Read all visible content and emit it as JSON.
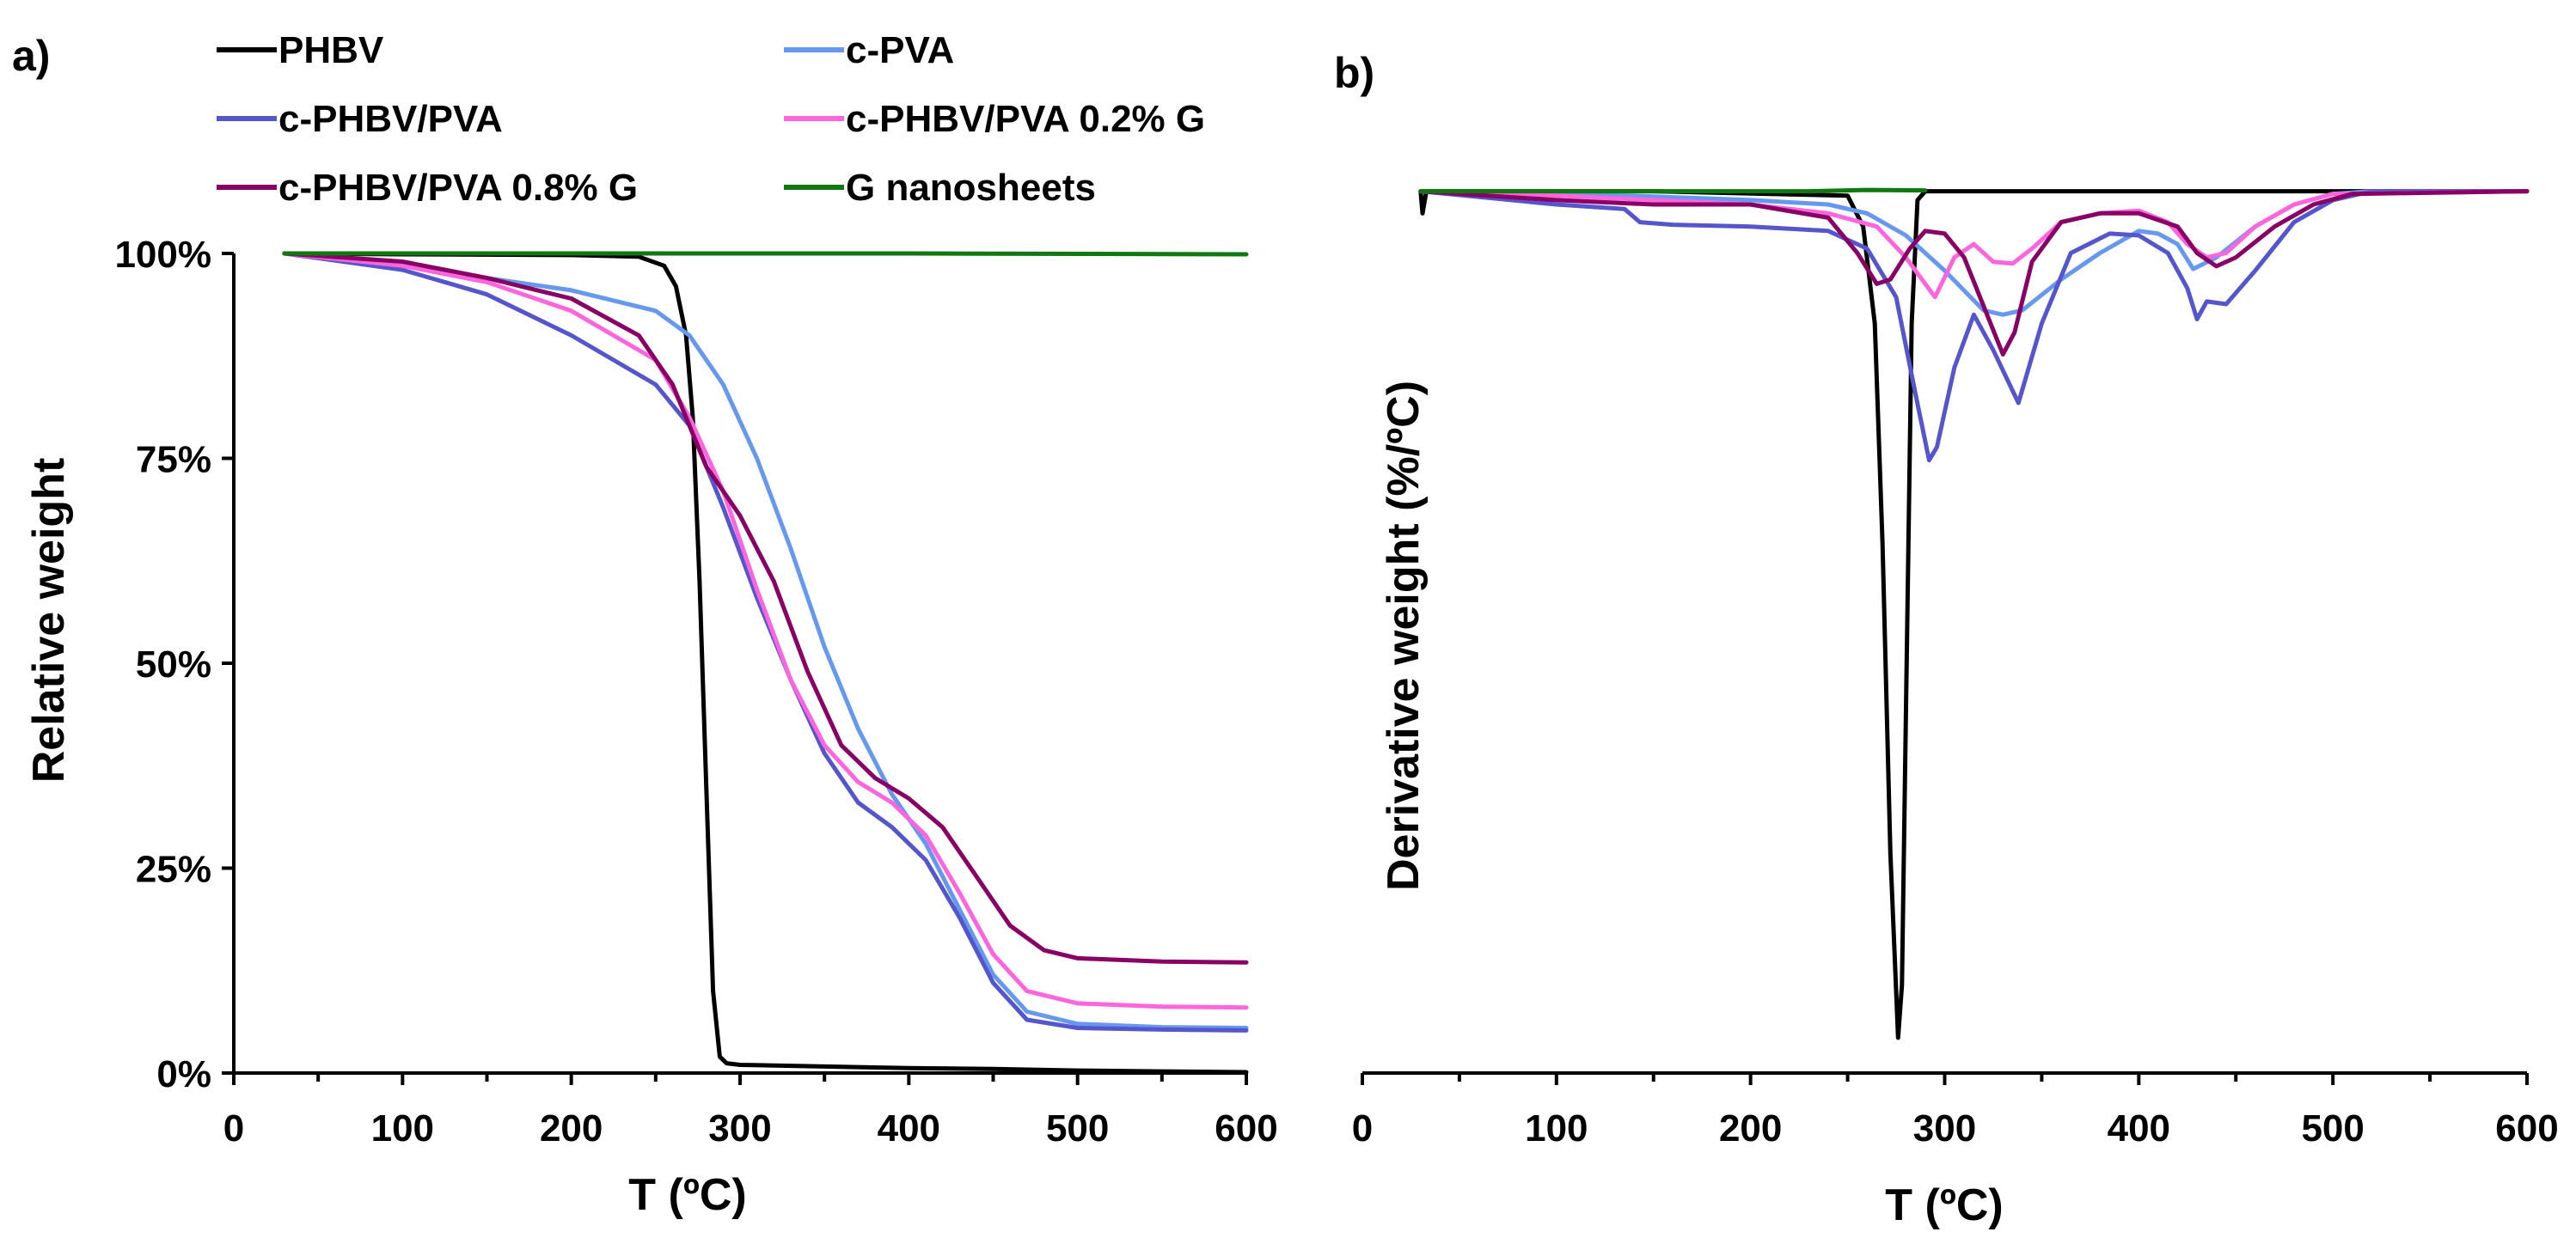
{
  "legend": [
    {
      "name": "PHBV",
      "color": "#000000"
    },
    {
      "name": "c-PVA",
      "color": "#6699ee"
    },
    {
      "name": "c-PHBV/PVA",
      "color": "#5555cc"
    },
    {
      "name": "c-PHBV/PVA 0.2% G",
      "color": "#ff66dd"
    },
    {
      "name": "c-PHBV/PVA 0.8% G",
      "color": "#880066"
    },
    {
      "name": "G nanosheets",
      "color": "#117711"
    }
  ],
  "chart_data": [
    {
      "panel_label": "a)",
      "type": "line",
      "title": "",
      "xlabel": "T (ºC)",
      "ylabel": "Relative weight",
      "xlim": [
        0,
        600
      ],
      "ylim": [
        0,
        100
      ],
      "xticks": [
        0,
        100,
        200,
        300,
        400,
        500,
        600
      ],
      "xtick_labels": [
        "0",
        "100",
        "200",
        "300",
        "400",
        "500",
        "600"
      ],
      "yticks": [
        0,
        25,
        50,
        75,
        100
      ],
      "ytick_labels": [
        "0%",
        "25%",
        "50%",
        "75%",
        "100%"
      ],
      "grid": false,
      "series": [
        {
          "name": "PHBV",
          "color": "#000000",
          "x": [
            30,
            100,
            200,
            240,
            255,
            262,
            268,
            272,
            276,
            280,
            284,
            288,
            292,
            300,
            350,
            400,
            450,
            500,
            550,
            600
          ],
          "y": [
            100,
            99.9,
            99.8,
            99.6,
            98.5,
            96,
            90,
            80,
            60,
            35,
            10,
            2,
            1.2,
            1.0,
            0.8,
            0.6,
            0.5,
            0.3,
            0.2,
            0.1
          ]
        },
        {
          "name": "c-PVA",
          "color": "#6699ee",
          "x": [
            30,
            100,
            150,
            200,
            250,
            270,
            290,
            310,
            330,
            350,
            370,
            390,
            410,
            430,
            450,
            470,
            500,
            550,
            600
          ],
          "y": [
            100,
            98.5,
            97,
            95.5,
            93,
            90,
            84,
            75,
            64,
            52,
            42,
            34,
            28,
            20,
            12,
            7.5,
            6,
            5.6,
            5.5
          ]
        },
        {
          "name": "c-PHBV/PVA",
          "color": "#5555cc",
          "x": [
            30,
            100,
            150,
            200,
            250,
            270,
            290,
            310,
            330,
            350,
            370,
            390,
            410,
            430,
            450,
            470,
            500,
            550,
            600
          ],
          "y": [
            100,
            98,
            95,
            90,
            84,
            79,
            69,
            58,
            48,
            39,
            33,
            30,
            26,
            19,
            11,
            6.5,
            5.5,
            5.3,
            5.2
          ]
        },
        {
          "name": "c-PHBV/PVA 0.2% G",
          "color": "#ff66dd",
          "x": [
            30,
            100,
            150,
            200,
            250,
            270,
            290,
            310,
            330,
            350,
            370,
            390,
            410,
            430,
            450,
            470,
            500,
            550,
            600
          ],
          "y": [
            100,
            98.5,
            96.5,
            93,
            87,
            80,
            71,
            59,
            48,
            40,
            35.5,
            33,
            29,
            22,
            14.5,
            10,
            8.5,
            8.1,
            8.0
          ]
        },
        {
          "name": "c-PHBV/PVA 0.8% G",
          "color": "#880066",
          "x": [
            30,
            100,
            150,
            200,
            240,
            260,
            280,
            300,
            320,
            340,
            360,
            380,
            400,
            420,
            440,
            460,
            480,
            500,
            550,
            600
          ],
          "y": [
            100,
            99,
            97,
            94.5,
            90,
            84,
            74,
            68,
            60,
            49,
            40,
            36,
            33.5,
            30,
            24,
            18,
            15,
            14,
            13.6,
            13.5
          ]
        },
        {
          "name": "G nanosheets",
          "color": "#117711",
          "x": [
            30,
            200,
            400,
            600
          ],
          "y": [
            100,
            100,
            100,
            99.9
          ]
        }
      ]
    },
    {
      "panel_label": "b)",
      "type": "line",
      "title": "",
      "xlabel": "T (ºC)",
      "ylabel": "Derivative weight (%/ºC)",
      "xlim": [
        0,
        600
      ],
      "ylim": [
        -100,
        10
      ],
      "xticks": [
        0,
        100,
        200,
        300,
        400,
        500,
        600
      ],
      "xtick_labels": [
        "0",
        "100",
        "200",
        "300",
        "400",
        "500",
        "600"
      ],
      "grid": false,
      "series": [
        {
          "name": "PHBV",
          "color": "#000000",
          "x": [
            30,
            31,
            33,
            50,
            150,
            250,
            258,
            264,
            268,
            272,
            276,
            278,
            280,
            283,
            286,
            290,
            300,
            400,
            500,
            600
          ],
          "y": [
            0,
            -2.5,
            0,
            0,
            0,
            -0.5,
            -4,
            -15,
            -40,
            -75,
            -96,
            -90,
            -60,
            -15,
            -1,
            0,
            0,
            0,
            0,
            0
          ]
        },
        {
          "name": "c-PVA",
          "color": "#6699ee",
          "x": [
            30,
            100,
            150,
            200,
            240,
            260,
            280,
            300,
            320,
            330,
            340,
            360,
            380,
            400,
            410,
            420,
            428,
            440,
            460,
            480,
            500,
            520,
            600
          ],
          "y": [
            0,
            -0.3,
            -0.6,
            -1.0,
            -1.5,
            -2.5,
            -5,
            -9,
            -13.5,
            -14,
            -13.5,
            -10,
            -7,
            -4.5,
            -4.8,
            -6,
            -8.8,
            -7.5,
            -4,
            -1.5,
            -0.3,
            0,
            0
          ]
        },
        {
          "name": "c-PHBV/PVA",
          "color": "#5555cc",
          "x": [
            30,
            100,
            135,
            143,
            160,
            200,
            240,
            260,
            275,
            285,
            292,
            296,
            305,
            315,
            325,
            338,
            350,
            365,
            385,
            400,
            415,
            425,
            430,
            435,
            445,
            460,
            480,
            500,
            520,
            600
          ],
          "y": [
            0,
            -1.5,
            -2,
            -3.5,
            -3.8,
            -4,
            -4.5,
            -6.5,
            -12,
            -23,
            -30.5,
            -29,
            -20,
            -14,
            -18,
            -24,
            -15,
            -7,
            -4.8,
            -5,
            -7,
            -11,
            -14.5,
            -12.5,
            -12.8,
            -9,
            -3.5,
            -1,
            0,
            0
          ]
        },
        {
          "name": "c-PHBV/PVA 0.2% G",
          "color": "#ff66dd",
          "x": [
            30,
            100,
            150,
            200,
            240,
            265,
            280,
            295,
            305,
            315,
            325,
            335,
            345,
            360,
            380,
            400,
            415,
            425,
            435,
            445,
            460,
            480,
            500,
            600
          ],
          "y": [
            0,
            -0.5,
            -1,
            -1.5,
            -2.5,
            -4,
            -7.5,
            -12,
            -7.5,
            -6,
            -8,
            -8.2,
            -6.5,
            -3.5,
            -2.5,
            -2.2,
            -3.5,
            -6,
            -7.5,
            -7,
            -4,
            -1.5,
            -0.3,
            0
          ]
        },
        {
          "name": "c-PHBV/PVA 0.8% G",
          "color": "#880066",
          "x": [
            30,
            100,
            150,
            200,
            240,
            255,
            265,
            272,
            282,
            290,
            300,
            310,
            320,
            330,
            336,
            345,
            360,
            380,
            400,
            420,
            430,
            440,
            450,
            470,
            490,
            510,
            600
          ],
          "y": [
            0,
            -1,
            -1.5,
            -1.5,
            -3,
            -7,
            -10.5,
            -10,
            -6.5,
            -4.5,
            -4.8,
            -7.5,
            -13,
            -18.5,
            -16,
            -8,
            -3.5,
            -2.5,
            -2.5,
            -4,
            -7,
            -8.5,
            -7.5,
            -4,
            -1.5,
            -0.3,
            0
          ]
        },
        {
          "name": "G nanosheets",
          "color": "#117711",
          "x": [
            30,
            100,
            200,
            230,
            260,
            290
          ],
          "y": [
            0,
            0,
            0,
            0,
            0.15,
            0.1
          ]
        }
      ]
    }
  ]
}
